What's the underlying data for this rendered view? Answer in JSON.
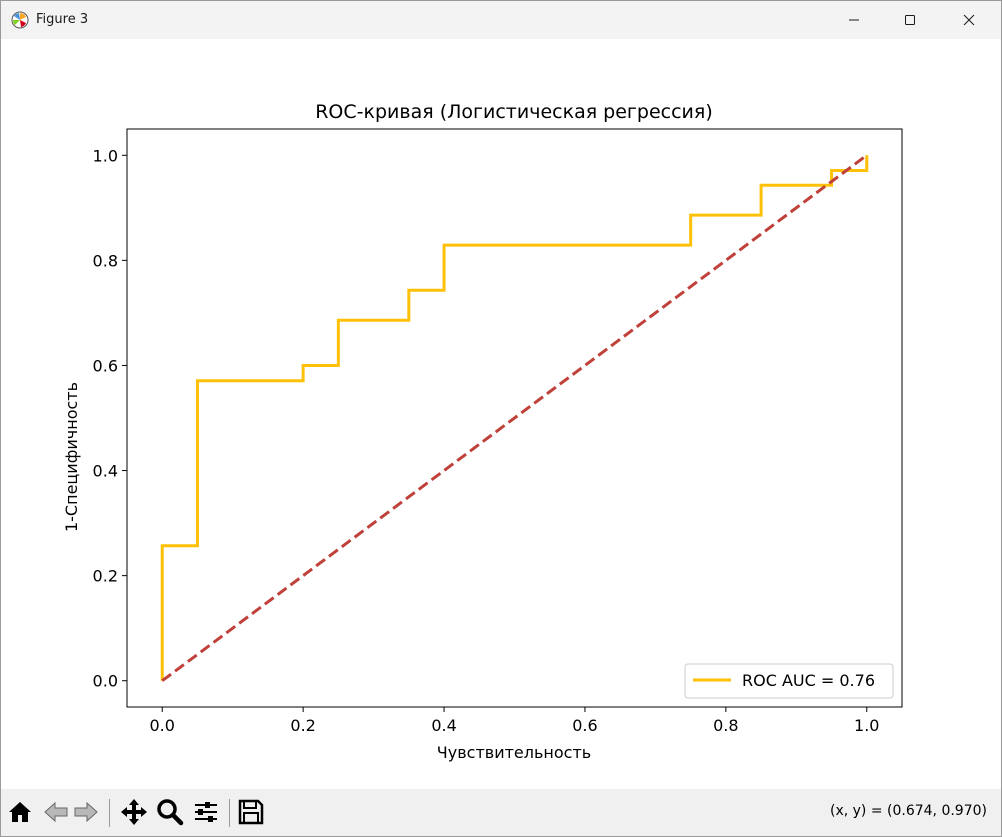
{
  "window": {
    "title": "Figure 3"
  },
  "toolbar": {
    "buttons": [
      "home-icon",
      "back-arrow-icon",
      "forward-arrow-icon",
      "pan-icon",
      "zoom-icon",
      "configure-subplots-icon",
      "save-icon"
    ],
    "coords_text": "(x, y) = (0.674, 0.970)"
  },
  "chart_data": {
    "type": "line",
    "title": "ROC-кривая (Логистическая регрессия)",
    "xlabel": "Чувствительность",
    "ylabel": "1-Специфичность",
    "xlim": [
      -0.05,
      1.05
    ],
    "ylim": [
      -0.05,
      1.05
    ],
    "xticks": [
      0.0,
      0.2,
      0.4,
      0.6,
      0.8,
      1.0
    ],
    "xtick_labels": [
      "0.0",
      "0.2",
      "0.4",
      "0.6",
      "0.8",
      "1.0"
    ],
    "yticks": [
      0.0,
      0.2,
      0.4,
      0.6,
      0.8,
      1.0
    ],
    "ytick_labels": [
      "0.0",
      "0.2",
      "0.4",
      "0.6",
      "0.8",
      "1.0"
    ],
    "grid": false,
    "legend_position": "lower-right",
    "series": [
      {
        "name": "ROC AUC = 0.76",
        "color": "#ffc107",
        "style": "solid",
        "x": [
          0.0,
          0.0,
          0.05,
          0.05,
          0.2,
          0.2,
          0.25,
          0.25,
          0.35,
          0.35,
          0.4,
          0.4,
          0.75,
          0.75,
          0.85,
          0.85,
          0.95,
          0.95,
          1.0,
          1.0
        ],
        "y": [
          0.0,
          0.257,
          0.257,
          0.571,
          0.571,
          0.6,
          0.6,
          0.686,
          0.686,
          0.743,
          0.743,
          0.829,
          0.829,
          0.886,
          0.886,
          0.943,
          0.943,
          0.971,
          0.971,
          1.0
        ]
      },
      {
        "color": "#c0403a",
        "style": "dashed",
        "x": [
          0.0,
          1.0
        ],
        "y": [
          0.0,
          1.0
        ]
      }
    ]
  }
}
